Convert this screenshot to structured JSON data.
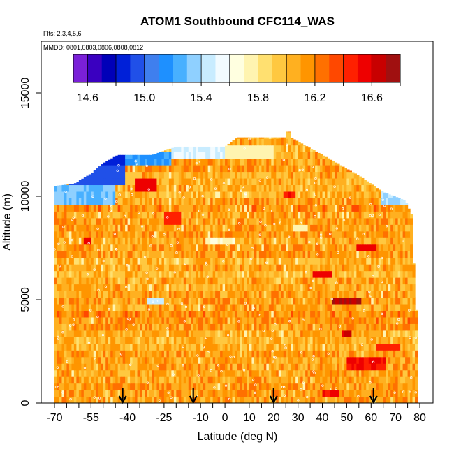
{
  "chart_data": {
    "type": "heatmap",
    "title": "ATOM1 Southbound CFC114_WAS",
    "subtitle_flights": "Flts: 2,3,4,5,6",
    "subtitle_dates": "MMDD: 0801,0803,0806,0808,0812",
    "xlabel": "Latitude (deg N)",
    "ylabel": "Altitude (m)",
    "xlim": [
      -70,
      82
    ],
    "ylim": [
      0,
      17500
    ],
    "x_tick_values": [
      -70,
      -55,
      -40,
      -25,
      -10,
      0,
      10,
      20,
      30,
      40,
      50,
      60,
      70,
      80
    ],
    "x_minor_ticks": [
      -65,
      -60,
      -50,
      -45,
      -35,
      -30,
      -20,
      -15,
      -5,
      5,
      15,
      25,
      35,
      45,
      55,
      65,
      75
    ],
    "y_tick_values": [
      0,
      5000,
      10000,
      15000
    ],
    "colorbar": {
      "min": 14.5,
      "max": 16.8,
      "tick_values": [
        14.6,
        15.0,
        15.4,
        15.8,
        16.2,
        16.6
      ],
      "colors": [
        "#7a20d8",
        "#3a00c0",
        "#0000b8",
        "#0020d8",
        "#2050e8",
        "#3f7fee",
        "#1e90ff",
        "#48b0ff",
        "#8fd0ff",
        "#c8ecff",
        "#f2fbff",
        "#ffffe0",
        "#fff4b0",
        "#ffe070",
        "#ffc840",
        "#ffb020",
        "#ff9500",
        "#ff7000",
        "#ff4800",
        "#ff2000",
        "#ee0000",
        "#c80000",
        "#a01010"
      ]
    },
    "profile_markers_lat": [
      -42,
      -13,
      20,
      61
    ],
    "envelope": [
      {
        "lat": -70,
        "top": 10500
      },
      {
        "lat": -62,
        "top": 10600
      },
      {
        "lat": -55,
        "top": 11100
      },
      {
        "lat": -50,
        "top": 11600
      },
      {
        "lat": -44,
        "top": 12000
      },
      {
        "lat": -30,
        "top": 12000
      },
      {
        "lat": -20,
        "top": 12400
      },
      {
        "lat": 0,
        "top": 12400
      },
      {
        "lat": 5,
        "top": 12850
      },
      {
        "lat": 25,
        "top": 12850
      },
      {
        "lat": 26,
        "top": 13400
      },
      {
        "lat": 27,
        "top": 12850
      },
      {
        "lat": 40,
        "top": 12000
      },
      {
        "lat": 55,
        "top": 11000
      },
      {
        "lat": 65,
        "top": 10200
      },
      {
        "lat": 74,
        "top": 9800
      },
      {
        "lat": 77,
        "top": 9000
      },
      {
        "lat": 78,
        "top": 4500
      },
      {
        "lat": 79,
        "top": 4500
      },
      {
        "lat": 79,
        "top": 0
      }
    ],
    "anomalies": [
      {
        "lat0": -70,
        "lat1": -45,
        "z0": 9500,
        "z1": 10400,
        "value": 15.3
      },
      {
        "lat0": -64,
        "lat1": -41,
        "z0": 10400,
        "z1": 11500,
        "value": 14.95
      },
      {
        "lat0": -55,
        "lat1": -41,
        "z0": 11400,
        "z1": 12100,
        "value": 14.85
      },
      {
        "lat0": -41,
        "lat1": -22,
        "z0": 11400,
        "z1": 12100,
        "value": 15.2
      },
      {
        "lat0": -22,
        "lat1": 0,
        "z0": 11800,
        "z1": 12400,
        "value": 15.5
      },
      {
        "lat0": 0,
        "lat1": 20,
        "z0": 11600,
        "z1": 12400,
        "value": 15.75
      },
      {
        "lat0": 64,
        "lat1": 79,
        "z0": 9600,
        "z1": 10100,
        "value": 15.4
      },
      {
        "lat0": -37,
        "lat1": -28,
        "z0": 10200,
        "z1": 10700,
        "value": 16.55
      },
      {
        "lat0": -58,
        "lat1": -55,
        "z0": 7500,
        "z1": 7800,
        "value": 16.55
      },
      {
        "lat0": 36,
        "lat1": 44,
        "z0": 6000,
        "z1": 6300,
        "value": 16.55
      },
      {
        "lat0": 44,
        "lat1": 56,
        "z0": 4600,
        "z1": 4900,
        "value": 16.7
      },
      {
        "lat0": 48,
        "lat1": 52,
        "z0": 3000,
        "z1": 3400,
        "value": 16.6
      },
      {
        "lat0": 50,
        "lat1": 66,
        "z0": 1400,
        "z1": 2000,
        "value": 16.5
      },
      {
        "lat0": 54,
        "lat1": 62,
        "z0": 7100,
        "z1": 7500,
        "value": 16.55
      },
      {
        "lat0": -32,
        "lat1": -25,
        "z0": 4700,
        "z1": 5000,
        "value": 15.45
      },
      {
        "lat0": -8,
        "lat1": 4,
        "z0": 7400,
        "z1": 7700,
        "value": 15.7
      },
      {
        "lat0": 24,
        "lat1": 29,
        "z0": 9800,
        "z1": 10200,
        "value": 16.5
      },
      {
        "lat0": 40,
        "lat1": 47,
        "z0": 200,
        "z1": 600,
        "value": 16.5
      },
      {
        "lat0": 62,
        "lat1": 72,
        "z0": 2400,
        "z1": 2800,
        "value": 16.45
      },
      {
        "lat0": -25,
        "lat1": -18,
        "z0": 8600,
        "z1": 9000,
        "value": 16.45
      },
      {
        "lat0": 28,
        "lat1": 34,
        "z0": 8200,
        "z1": 8500,
        "value": 15.75
      }
    ]
  }
}
